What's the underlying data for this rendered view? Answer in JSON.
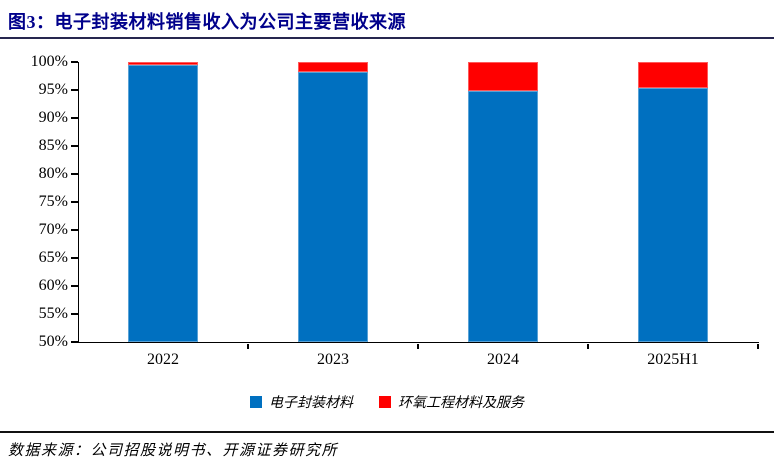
{
  "title": "图3：电子封装材料销售收入为公司主要营收来源",
  "footer": {
    "text": "数据来源：公司招股说明书、开源证券研究所"
  },
  "colors": {
    "bar_blue": "#0070C0",
    "bar_red": "#FF0000",
    "title_blue": "#00008B",
    "axis": "#000000"
  },
  "chart_data": {
    "type": "bar",
    "stacked": true,
    "title": "电子封装材料销售收入为公司主要营收来源",
    "categories": [
      "2022",
      "2023",
      "2024",
      "2025H1"
    ],
    "series": [
      {
        "name": "电子封装材料",
        "color": "#0070C0",
        "values": [
          99.4,
          98.3,
          94.9,
          95.4
        ]
      },
      {
        "name": "环氧工程材料及服务",
        "color": "#FF0000",
        "values": [
          0.6,
          1.7,
          5.1,
          4.6
        ]
      }
    ],
    "value_format": "percent",
    "ylim": [
      50,
      100
    ],
    "ytick_step": 5,
    "ytick_labels": [
      "100%",
      "95%",
      "90%",
      "85%",
      "80%",
      "75%",
      "70%",
      "65%",
      "60%",
      "55%",
      "50%"
    ],
    "grid": false,
    "legend_position": "bottom"
  }
}
